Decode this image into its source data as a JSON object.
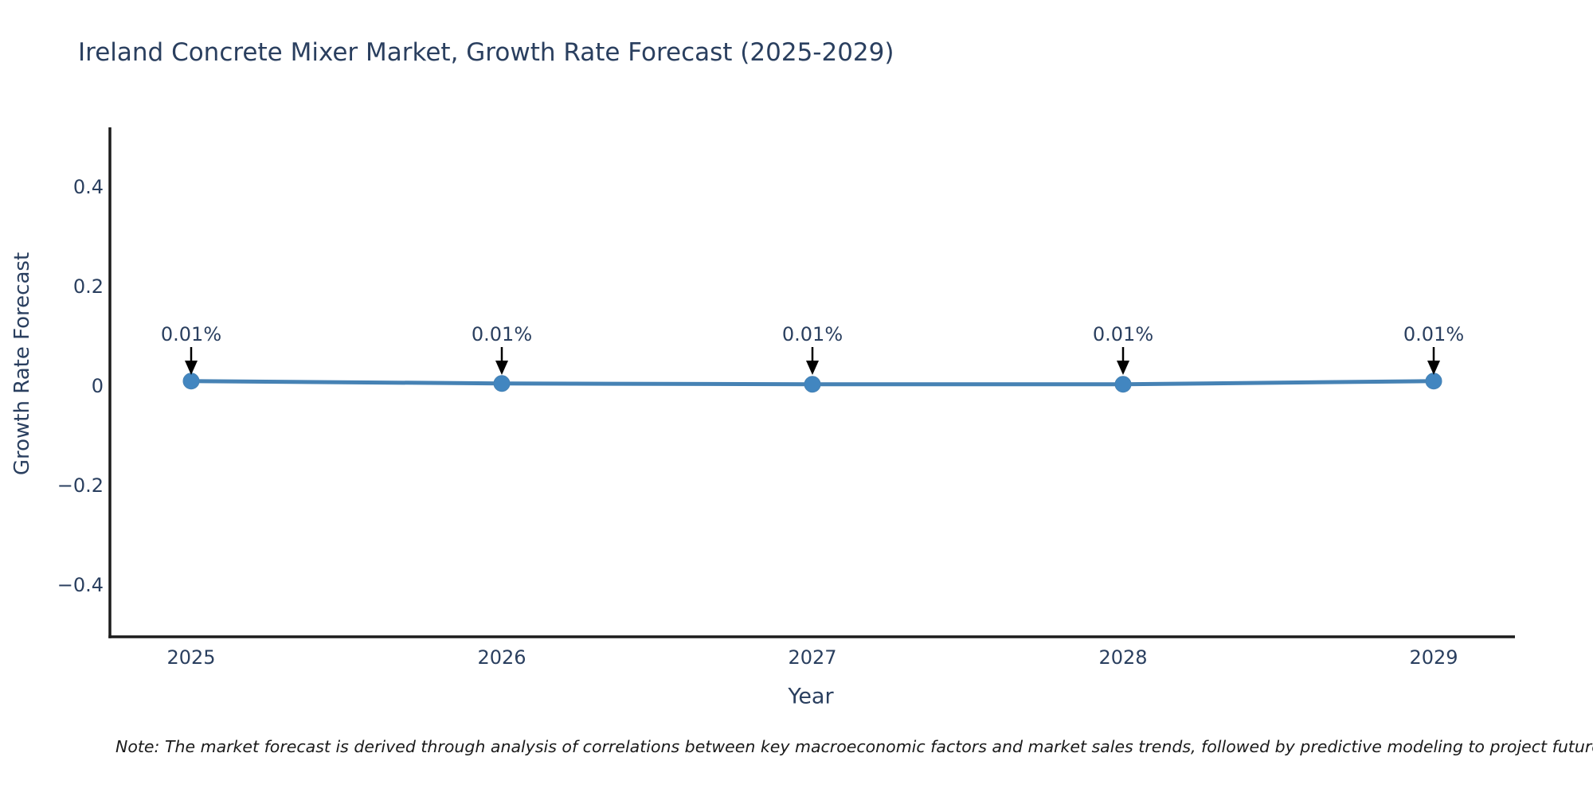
{
  "chart_data": {
    "type": "line",
    "title": "Ireland Concrete Mixer Market, Growth Rate Forecast (2025-2029)",
    "xlabel": "Year",
    "ylabel": "Growth Rate Forecast",
    "categories": [
      "2025",
      "2026",
      "2027",
      "2028",
      "2029"
    ],
    "series": [
      {
        "name": "Growth Rate Forecast",
        "values": [
          0.01,
          0.01,
          0.01,
          0.01,
          0.01
        ]
      }
    ],
    "point_labels": [
      "0.01%",
      "0.01%",
      "0.01%",
      "0.01%",
      "0.01%"
    ],
    "y_ticks": [
      "0.4",
      "0.2",
      "0",
      "−0.2",
      "−0.4"
    ],
    "y_tick_values": [
      0.4,
      0.2,
      0,
      -0.2,
      -0.4
    ],
    "ylim": [
      -0.5,
      0.52
    ],
    "grid": false,
    "legend_position": "none",
    "colors": {
      "line": "#4682b4",
      "marker": "#4286c0",
      "axis": "#1c1c1c",
      "text": "#2a3f5f",
      "annotation_arrow": "#000000"
    }
  },
  "note": "Note: The market forecast is derived through analysis of correlations between key macroeconomic factors and market sales trends, followed by predictive modeling to project future sales"
}
